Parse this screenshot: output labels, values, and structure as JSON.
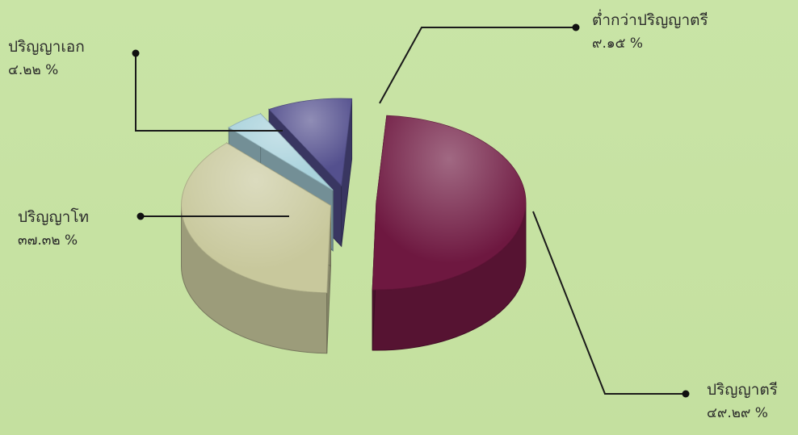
{
  "chart_data": {
    "type": "pie",
    "title": "",
    "style": "exploded 3d",
    "background": "#c7e2a3",
    "slices": [
      {
        "label": "ปริญญาตรี",
        "value_text": "๔๙.๒๙ %",
        "value": 49.29,
        "color": "#6e1840"
      },
      {
        "label": "ปริญญาโท",
        "value_text": "๓๗.๓๒ %",
        "value": 37.32,
        "color": "#c8c89c"
      },
      {
        "label": "ปริญญาเอก",
        "value_text": "๔.๒๒ %",
        "value": 4.22,
        "color": "#a9d2dc"
      },
      {
        "label": "ต่ำกว่าปริญญาตรี",
        "value_text": "๙.๑๕ %",
        "value": 9.15,
        "color": "#54508e"
      }
    ]
  }
}
